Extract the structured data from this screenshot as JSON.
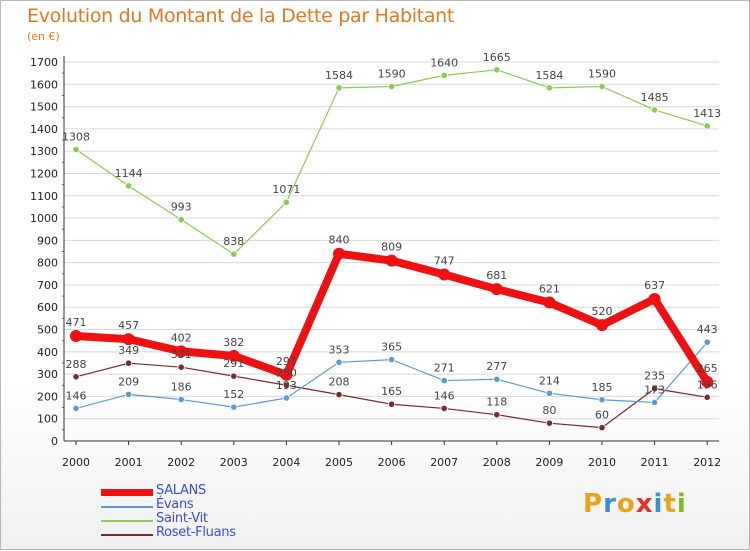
{
  "header": {
    "title": "Evolution du Montant de la Dette par Habitant",
    "subtitle": "(en €)"
  },
  "colors": {
    "title": "#e0781e",
    "grid": "#d8d8d8",
    "legend_text": "#3a4fd0"
  },
  "logo": {
    "text": "Proxiti",
    "letters": [
      "P",
      "r",
      "o",
      "x",
      "i",
      "t",
      "i"
    ],
    "colors": [
      "#e8a317",
      "#3a8fd8",
      "#e8a317",
      "#e0312b",
      "#3a8fd8",
      "#e8a317",
      "#7dbb2a"
    ]
  },
  "chart_data": {
    "type": "line",
    "title": "Evolution du Montant de la Dette par Habitant",
    "subtitle": "(en €)",
    "x": [
      2000,
      2001,
      2002,
      2003,
      2004,
      2005,
      2006,
      2007,
      2008,
      2009,
      2010,
      2011,
      2012
    ],
    "xlabel": "",
    "ylabel": "",
    "ylim": [
      0,
      1700
    ],
    "yticks": [
      0,
      100,
      200,
      300,
      400,
      500,
      600,
      700,
      800,
      900,
      1000,
      1100,
      1200,
      1300,
      1400,
      1500,
      1600,
      1700
    ],
    "grid": true,
    "legend_placement": "bottom-left",
    "series": [
      {
        "name": "SALANS",
        "color": "#ee1111",
        "bold": true,
        "values": [
          471,
          457,
          402,
          382,
          297,
          840,
          809,
          747,
          681,
          621,
          520,
          637,
          265
        ],
        "labels": [
          "471",
          "457",
          "402",
          "382",
          "297",
          "840",
          "809",
          "747",
          "681",
          "621",
          "520",
          "637",
          "265"
        ]
      },
      {
        "name": "Évans",
        "color": "#5b9bd5",
        "bold": false,
        "values": [
          146,
          209,
          186,
          152,
          193,
          353,
          365,
          271,
          277,
          214,
          185,
          173,
          443
        ],
        "labels": [
          "146",
          "209",
          "186",
          "152",
          "193",
          "353",
          "365",
          "271",
          "277",
          "214",
          "185",
          "173",
          "443"
        ]
      },
      {
        "name": "Saint-Vit",
        "color": "#88cc55",
        "bold": false,
        "values": [
          1308,
          1144,
          993,
          838,
          1071,
          1584,
          1590,
          1640,
          1665,
          1584,
          1590,
          1485,
          1413
        ],
        "labels": [
          "1308",
          "1144",
          "993",
          "838",
          "1071",
          "1584",
          "1590",
          "1640",
          "1665",
          "1584",
          "1590",
          "1485",
          "1413"
        ]
      },
      {
        "name": "Roset-Fluans",
        "color": "#7a2a2a",
        "bold": false,
        "values": [
          288,
          349,
          331,
          291,
          250,
          208,
          165,
          146,
          118,
          80,
          60,
          235,
          196
        ],
        "labels": [
          "288",
          "349",
          "331",
          "291",
          "250",
          "208",
          "165",
          "146",
          "118",
          "80",
          "60",
          "235",
          "196"
        ]
      }
    ]
  }
}
